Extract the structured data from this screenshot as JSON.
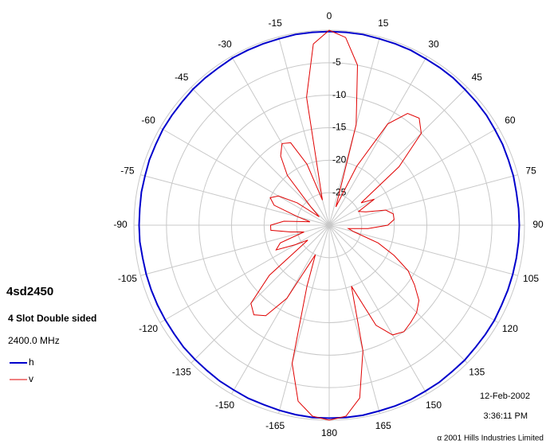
{
  "chart_data": {
    "type": "polar",
    "title": "4sd2450",
    "subtitle": "4 Slot Double sided",
    "frequency": "2400.0 MHz",
    "date": "12-Feb-2002",
    "time": "3:36:11 PM",
    "copyright": "α 2001 Hills Industries Limited",
    "rlim": [
      -30,
      0
    ],
    "rticks": [
      -25,
      -20,
      -15,
      -10,
      -5
    ],
    "thetaticks": [
      0,
      15,
      30,
      45,
      60,
      75,
      90,
      105,
      120,
      135,
      150,
      165,
      180,
      -165,
      -150,
      -135,
      -120,
      -105,
      -90,
      -75,
      -60,
      -45,
      -30,
      -15
    ],
    "theta": [
      -180,
      -175,
      -170,
      -165,
      -160,
      -155,
      -150,
      -145,
      -140,
      -135,
      -130,
      -125,
      -120,
      -115,
      -110,
      -105,
      -100,
      -95,
      -90,
      -85,
      -80,
      -75,
      -70,
      -65,
      -60,
      -55,
      -50,
      -45,
      -40,
      -35,
      -30,
      -25,
      -20,
      -15,
      -10,
      -5,
      0,
      5,
      10,
      15,
      20,
      25,
      30,
      35,
      40,
      45,
      50,
      55,
      60,
      65,
      70,
      75,
      80,
      85,
      90,
      95,
      100,
      105,
      110,
      115,
      120,
      125,
      130,
      135,
      140,
      145,
      150,
      155,
      160,
      165,
      170,
      175,
      180
    ],
    "series": [
      {
        "name": "h",
        "color": "#0000cc",
        "values": [
          -0.3,
          -0.3,
          -0.4,
          -0.5,
          -0.6,
          -0.6,
          -0.7,
          -0.7,
          -0.8,
          -0.8,
          -0.8,
          -0.9,
          -0.9,
          -0.9,
          -0.9,
          -0.9,
          -0.9,
          -0.8,
          -0.8,
          -0.8,
          -0.7,
          -0.7,
          -0.6,
          -0.6,
          -0.5,
          -0.5,
          -0.5,
          -0.4,
          -0.4,
          -0.4,
          -0.3,
          -0.3,
          -0.3,
          -0.3,
          -0.2,
          -0.2,
          -0.2,
          -0.2,
          -0.2,
          -0.3,
          -0.3,
          -0.3,
          -0.4,
          -0.4,
          -0.4,
          -0.5,
          -0.5,
          -0.5,
          -0.6,
          -0.6,
          -0.7,
          -0.7,
          -0.8,
          -0.8,
          -0.8,
          -0.8,
          -0.8,
          -0.8,
          -0.8,
          -0.8,
          -0.7,
          -0.7,
          -0.7,
          -0.6,
          -0.6,
          -0.5,
          -0.5,
          -0.4,
          -0.4,
          -0.4,
          -0.3,
          -0.3,
          -0.3
        ]
      },
      {
        "name": "v",
        "color": "#e00000",
        "values": [
          0,
          -0.5,
          -2.5,
          -8,
          -20,
          -25,
          -17,
          -13,
          -12,
          -13,
          -18,
          -26,
          -24,
          -21,
          -22,
          -26,
          -24,
          -21,
          -21,
          -23,
          -27,
          -25,
          -21,
          -20,
          -21,
          -24,
          -28,
          -26,
          -20,
          -17,
          -15.5,
          -16,
          -20,
          -26,
          -10,
          -2,
          0,
          -1,
          -5,
          -14,
          -27,
          -20,
          -12,
          -9,
          -8.5,
          -10,
          -16,
          -24,
          -22,
          -25,
          -24,
          -21,
          -20,
          -20,
          -21,
          -24,
          -27,
          -26,
          -22,
          -19,
          -16,
          -14,
          -12,
          -11,
          -10.5,
          -10,
          -10.5,
          -13,
          -20,
          -10,
          -3,
          -0.5,
          0
        ]
      }
    ]
  }
}
